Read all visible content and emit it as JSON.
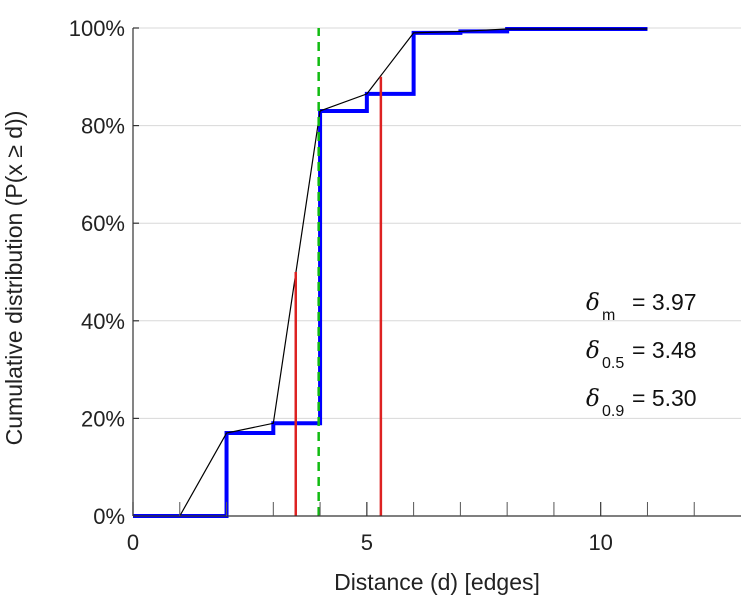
{
  "chart_data": {
    "type": "line",
    "xlabel": "Distance (d) [edges]",
    "ylabel": "Cumulative distribution (P(x ≥ d))",
    "xlim": [
      0,
      13
    ],
    "ylim": [
      0,
      1
    ],
    "xticks": [
      0,
      5,
      10
    ],
    "xtick_labels": [
      "0",
      "5",
      "10"
    ],
    "xminor_ticks": [
      1,
      2,
      3,
      4,
      6,
      7,
      8,
      9,
      11,
      12
    ],
    "yticks": [
      0,
      0.2,
      0.4,
      0.6,
      0.8,
      1.0
    ],
    "ytick_labels": [
      "0%",
      "20%",
      "40%",
      "60%",
      "80%",
      "100%"
    ],
    "grid": "horizontal",
    "colors": {
      "step": "#0000ff",
      "line": "#000000",
      "percentile": "#dd2222",
      "median": "#11bb11"
    },
    "series": [
      {
        "style": "step",
        "points": [
          [
            0,
            0
          ],
          [
            2,
            0
          ],
          [
            2,
            0.17
          ],
          [
            3,
            0.17
          ],
          [
            3,
            0.19
          ],
          [
            4,
            0.19
          ],
          [
            4,
            0.83
          ],
          [
            5,
            0.83
          ],
          [
            5,
            0.865
          ],
          [
            6,
            0.865
          ],
          [
            6,
            0.99
          ],
          [
            7,
            0.99
          ],
          [
            7,
            0.993
          ],
          [
            8,
            0.993
          ],
          [
            8,
            0.998
          ],
          [
            11,
            0.998
          ]
        ]
      },
      {
        "style": "line",
        "points": [
          [
            1,
            0
          ],
          [
            2,
            0.17
          ],
          [
            3,
            0.19
          ],
          [
            4,
            0.83
          ],
          [
            5,
            0.865
          ],
          [
            6,
            0.99
          ],
          [
            7,
            0.993
          ],
          [
            8,
            0.998
          ],
          [
            11,
            0.998
          ]
        ]
      }
    ],
    "percentile_lines": [
      {
        "x": 3.48,
        "y_top": 0.5
      },
      {
        "x": 5.3,
        "y_top": 0.9
      }
    ],
    "mean_line": {
      "x": 3.97
    },
    "annotations": [
      {
        "symbol": "δ",
        "sub": "m",
        "text": "= 3.97"
      },
      {
        "symbol": "δ",
        "sub": "0.5",
        "text": "= 3.48"
      },
      {
        "symbol": "δ",
        "sub": "0.9",
        "text": "= 5.30"
      }
    ]
  }
}
